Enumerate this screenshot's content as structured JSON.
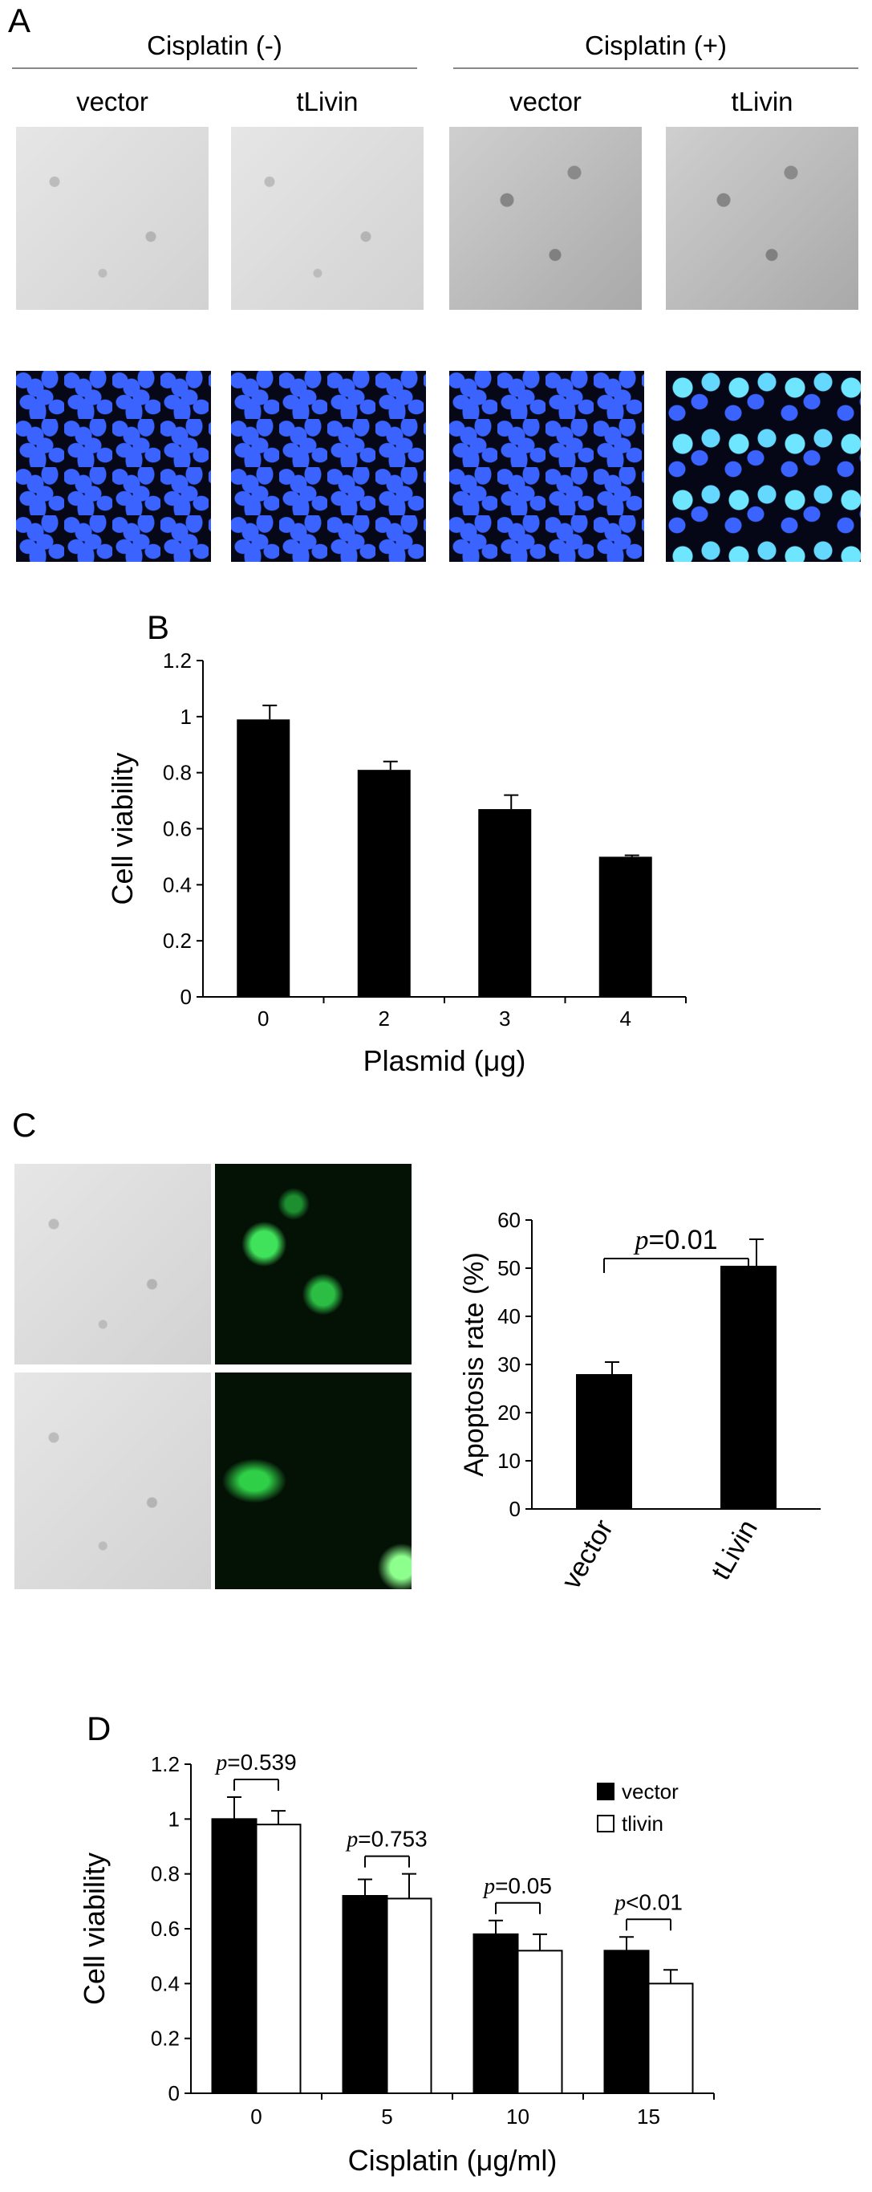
{
  "panel_a": {
    "letter": "A",
    "group_neg": "Cisplatin (-)",
    "group_pos": "Cisplatin (+)",
    "col_labels": [
      "vector",
      "tLivin",
      "vector",
      "tLivin"
    ]
  },
  "panel_b": {
    "letter": "B"
  },
  "panel_c": {
    "letter": "C",
    "annotation": "p=0.01"
  },
  "panel_d": {
    "letter": "D"
  },
  "chart_data": [
    {
      "id": "B",
      "type": "bar",
      "categories": [
        "0",
        "2",
        "3",
        "4"
      ],
      "series": [
        {
          "values": [
            0.99,
            0.81,
            0.67,
            0.5
          ],
          "errors": [
            0.05,
            0.03,
            0.05,
            0.005
          ]
        }
      ],
      "xlabel": "Plasmid (μg)",
      "ylabel": "Cell viability",
      "ylim": [
        0,
        1.2
      ],
      "yticks": [
        "0",
        "0.2",
        "0.4",
        "0.6",
        "0.8",
        "1",
        "1.2"
      ],
      "color": "#000000"
    },
    {
      "id": "C",
      "type": "bar",
      "categories": [
        "vector",
        "tLivin"
      ],
      "series": [
        {
          "values": [
            28,
            50.5
          ],
          "errors": [
            2.5,
            5.5
          ]
        }
      ],
      "xlabel": "",
      "ylabel": "Apoptosis rate (%)",
      "ylim": [
        0,
        60
      ],
      "yticks": [
        "0",
        "10",
        "20",
        "30",
        "40",
        "50",
        "60"
      ],
      "annotations": [
        "p=0.01"
      ],
      "color": "#000000"
    },
    {
      "id": "D",
      "type": "bar",
      "categories": [
        "0",
        "5",
        "10",
        "15"
      ],
      "series": [
        {
          "name": "vector",
          "values": [
            1.0,
            0.72,
            0.58,
            0.52
          ],
          "errors": [
            0.08,
            0.06,
            0.05,
            0.05
          ],
          "color": "#000000"
        },
        {
          "name": "tlivin",
          "values": [
            0.98,
            0.71,
            0.52,
            0.4
          ],
          "errors": [
            0.05,
            0.09,
            0.06,
            0.05
          ],
          "color": "#ffffff"
        }
      ],
      "xlabel": "Cisplatin (μg/ml)",
      "ylabel": "Cell viability",
      "ylim": [
        0,
        1.2
      ],
      "yticks": [
        "0",
        "0.2",
        "0.4",
        "0.6",
        "0.8",
        "1",
        "1.2"
      ],
      "annotations": [
        "p=0.539",
        "p=0.753",
        "p=0.05",
        "p<0.01"
      ],
      "legend": "top-right"
    }
  ]
}
